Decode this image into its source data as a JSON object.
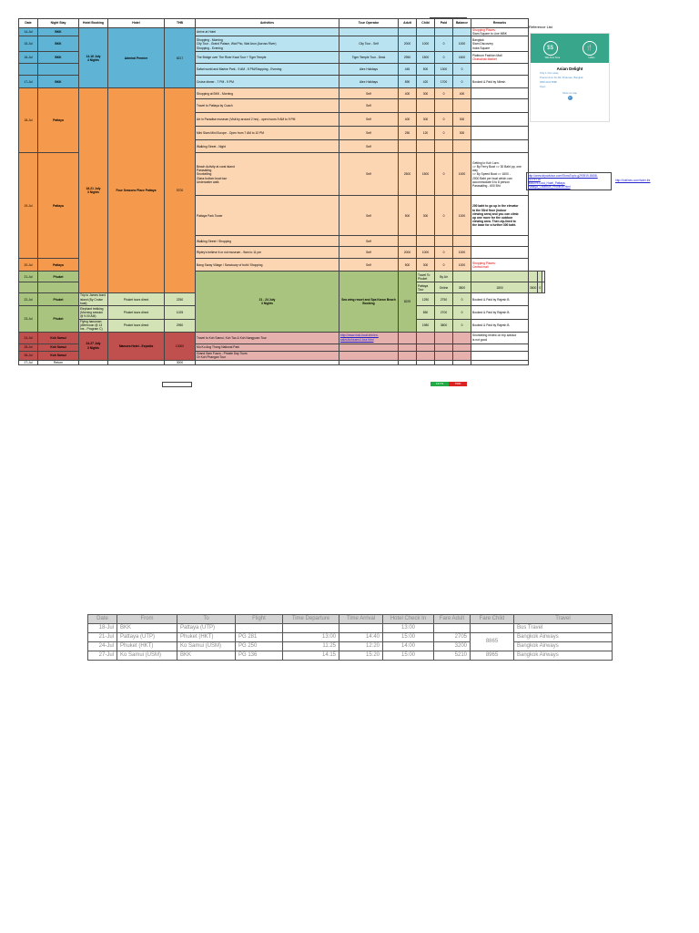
{
  "header": {
    "rajesh_share": "Rajesh Shankar",
    "reference_list": "Reference List"
  },
  "columns": [
    "Date",
    "Night Stay",
    "Hotel Booking",
    "Hotel",
    "THB",
    "Activities",
    "Tour Operator",
    "Adult",
    "Child",
    "Paid",
    "Balance",
    "Remarks"
  ],
  "rows": {
    "r1": {
      "date": "14-Jul",
      "stay": "BKK",
      "activity": "Arrive at Hotel",
      "remarks1": "Shopping Places:",
      "remarks2": "Siam Square to Line MBK",
      "remarks3": "Bangkok"
    },
    "r2": {
      "date": "15-Jul",
      "stay": "BKK",
      "activity1": "Shopping - Morning",
      "activity2": "City Tour - Grand Palace, Wat Pho, Wat Arun (Across River)",
      "activity3": "Shopping - Evening",
      "operator": "City Tour - Self",
      "adult": "2000",
      "child": "1000",
      "paid": "0",
      "balance": "1000",
      "remarks1": "Siam Discovery",
      "remarks2": "Indra Square",
      "remarks3": "Platinum Fashion Mall",
      "remarks4": "Chatuchak Market"
    },
    "r3": {
      "date": "16-Jul",
      "stay": "BKK",
      "activity": "The Bridge over The River Kwai Tour + Tiger Temple",
      "operator": "Tiger Temple Tour - Desk",
      "adult": "2950",
      "child": "1500",
      "paid": "0",
      "balance": "1600"
    },
    "r4": {
      "activity": "Safari world and Marine Park - 9 AM - 5 PM/Shopping - Evening",
      "operator": "Alex Holidays",
      "adult": "445",
      "child": "500",
      "paid": "1300",
      "balance": "0"
    },
    "r5": {
      "date": "17-Jul",
      "stay": "BKK",
      "activity": "Cruise dinner - 7 PM - 9 PM",
      "operator": "Alex Holidays",
      "adult": "890",
      "child": "420",
      "paid": "1700",
      "balance": "0",
      "remarks": "Booked & Paid by Nilesh"
    },
    "bkk_booking": {
      "dates": "14-16 July",
      "nights": "4 Nights",
      "hotel": "Admiral Premier",
      "thb": "8217"
    },
    "p1": {
      "activity": "Shopping at BKK - Morning",
      "operator": "Self",
      "adult": "400",
      "child": "300",
      "paid": "0",
      "balance": "400"
    },
    "p2": {
      "activity": "Travel to Pattaya by Coach",
      "operator": "Self"
    },
    "p3": {
      "date": "18-Jul",
      "stay": "Pattaya",
      "activity": "Art in Paradise museum (Visit by around 2 hrs) - open hours 9 AM to 9 PM",
      "operator": "Self",
      "adult": "400",
      "child": "300",
      "paid": "0",
      "balance": "300"
    },
    "p4": {
      "activity": "Mini Siam Mini Europe - Open from 7 AM to 10 PM",
      "operator": "Self",
      "adult": "250",
      "child": "120",
      "paid": "0",
      "balance": "300"
    },
    "p5": {
      "activity": "Walking Street - Night",
      "operator": "Self"
    },
    "p6": {
      "date": "19-Jul",
      "stay": "Pattaya",
      "activity1": "Beach Activity at coral island",
      "activity2": "Parasailing",
      "activity3": "Snorkelling",
      "activity4": "Glass bottom boat tour",
      "activity5": "Underwater walk",
      "operator": "Self",
      "adult": "2500",
      "child": "1500",
      "paid": "0",
      "balance": "1000",
      "remarks1": "Getting to Koh Larn:",
      "remarks2": "=> By Ferry Boat => 30 Baht pp, one way",
      "remarks3": "=> By Speed Boat => 1600 -",
      "remarks4": "2000 Baht per boat which can",
      "remarks5": "accommodate 6 to 8 person",
      "remarks6": "Parasailing - 600 Bht"
    },
    "p7": {
      "activity": "Pattaya Park Tower",
      "operator": "Self",
      "adult": "500",
      "child": "300",
      "paid": "0",
      "balance": "1000",
      "remarks1": "200 baht to go up in the elevator",
      "remarks2": "to the 53rd floor (indoor",
      "remarks3": "viewing area) and you can climb",
      "remarks4": "up one more for the outdoor",
      "remarks5": "viewing area. Then zip-lined to",
      "remarks6": "the base for a further 300 baht."
    },
    "p8": {
      "activity": "Walking Street / Shopping",
      "operator": "Self"
    },
    "p9": {
      "activity": "Ripley's believe it or not museum - 9am to 11 pm",
      "operator": "Self",
      "adult": "2000",
      "child": "1000",
      "paid": "0",
      "balance": "1000"
    },
    "p10": {
      "date": "20-Jul",
      "stay": "Pattaya",
      "activity": "Bang Saray Village / Sanctuary of truth/ Shopping",
      "operator": "Self",
      "adult": "500",
      "child": "300",
      "paid": "0",
      "balance": "1000",
      "remarks1": "Shopping Places:",
      "remarks2": "Central mall"
    },
    "pty_booking": {
      "dates": "18-21 July",
      "nights": "3 Nights",
      "hotel": "Four Seasons Place Pattaya",
      "thb": "5700"
    },
    "k1": {
      "date": "21-Jul",
      "stay": "Phuket",
      "activity": "Travel To Phuket",
      "operator": "By Air"
    },
    "k2": {
      "activity": "Pattaya Tour",
      "operator": "Online",
      "adult": "3800",
      "child": "1800",
      "paid": "3600",
      "balance": "0"
    },
    "k3": {
      "date": "22-Jul",
      "stay": "Phuket",
      "activity": "Trip to James bond island (By Cruise boat)",
      "operator": "Phuket tours direct",
      "adult": "2250",
      "child": "1250",
      "paid": "2750",
      "balance": "0",
      "remarks": "Booked & Paid by Rajesh B."
    },
    "k4": {
      "date": "23-Jul",
      "stay": "Phuket",
      "activity": "Elephant trekking (Morning session @ 9.00 AM)",
      "operator": "Phuket tours direct",
      "adult": "1025",
      "child": "850",
      "paid": "2700",
      "balance": "0",
      "remarks": "Booked & Paid by Rajesh B."
    },
    "k5": {
      "activity": "Flying hanuman (Afternoon @ 13 hrs - Program C)",
      "operator": "Phuket tours direct",
      "adult": "2950",
      "child": "1980",
      "paid": "3800",
      "balance": "0",
      "remarks": "Booked & Paid by Rajesh B."
    },
    "phk_booking": {
      "dates": "21 - 24 July",
      "nights": "3 Nights",
      "hotel": "Sea wing resort and Spa Karon Beach Booking",
      "thb": "8229"
    },
    "s1": {
      "date": "24-Jul",
      "stay": "Koh Samui",
      "activity": "Travel to Koh Samui, Koh Tao & Koh Nangyuan Tour",
      "link1": "http://www.indo-boat.info/en-",
      "link2": "sales/kohsamui-tour.html",
      "remarks1": "Snorkelling review on trip advisor",
      "remarks2": "is not good"
    },
    "s2": {
      "date": "25-Jul",
      "stay": "Koh Samui",
      "activity": "Mu Ko Ang Thong National Park"
    },
    "s3": {
      "date": "26-Jul",
      "stay": "Koh Samui",
      "activity1": "Grand Sam Fuzzo - Private Day Tours",
      "activity2": "Or Koh Phangan Tour"
    },
    "s4": {
      "date": "27-Jul",
      "stay": "Return"
    },
    "ksm_booking": {
      "dates": "24-27 July",
      "nights": "3 Nights",
      "hotel": "Mamora Hotel - Expedia",
      "thb": "13000"
    },
    "thb_total": "3000"
  },
  "reference_card": {
    "left_label": "Wat Arun Area",
    "right_label": "Indian",
    "left_icon": "$$",
    "right_icon": "fork-knife-icon",
    "name": "Asian Delight",
    "line1": "Only 1.4 km away",
    "line2": "Thanon Arun Sin Rd, Pratunam, Bangkok",
    "line3": "0666 2222 5588",
    "line4": "Open",
    "more": "Show on map",
    "dot": "1"
  },
  "ext_links": {
    "tripadvisor1": "http://www.tripadvisor.com/ShowTopic-g293919-i3658-k1176718",
    "tripadvisor2": "ix48379-Cost_Hotel_Pattaya",
    "tripadvisor3": "Pattaya_Chonburi_Province.html",
    "hotel_link": "http://hotlines.com/hotel-thr"
  },
  "totals": {
    "green": "13773",
    "red": "7600"
  },
  "flights": {
    "headers": [
      "Date",
      "From",
      "To",
      "Flight",
      "Time Departure",
      "Time Arrival",
      "Hotel Check In",
      "Fare Adult",
      "Fare Child",
      "Travel"
    ],
    "rows": [
      {
        "date": "18-Jul",
        "from": "BKK",
        "to": "Pattaya (UTP)",
        "flight": "",
        "dep": "",
        "arr": "",
        "checkin": "13:00",
        "adult": "",
        "child": "",
        "travel": "Bus Travel"
      },
      {
        "date": "21-Jul",
        "from": "Pattaya (UTP)",
        "to": "Phuket (HKT)",
        "flight": "PG 281",
        "dep": "13:00",
        "arr": "14:40",
        "checkin": "15:00",
        "adult": "2705",
        "child": "",
        "travel": "Bangkok Airways"
      },
      {
        "date": "24-Jul",
        "from": "Phuket (HKT)",
        "to": "Ko Samui (USM)",
        "flight": "PG 250",
        "dep": "11:25",
        "arr": "12:20",
        "checkin": "14:00",
        "adult": "3200",
        "child": "",
        "travel": "Bangkok Airways"
      },
      {
        "date": "27-Jul",
        "from": "Ko Samui (USM)",
        "to": "BKK",
        "flight": "PG 136",
        "dep": "14:15",
        "arr": "15:20",
        "checkin": "15:00",
        "adult": "5210",
        "child": "8965",
        "travel": "Bangkok Airways"
      }
    ],
    "merged_child": "8865"
  }
}
